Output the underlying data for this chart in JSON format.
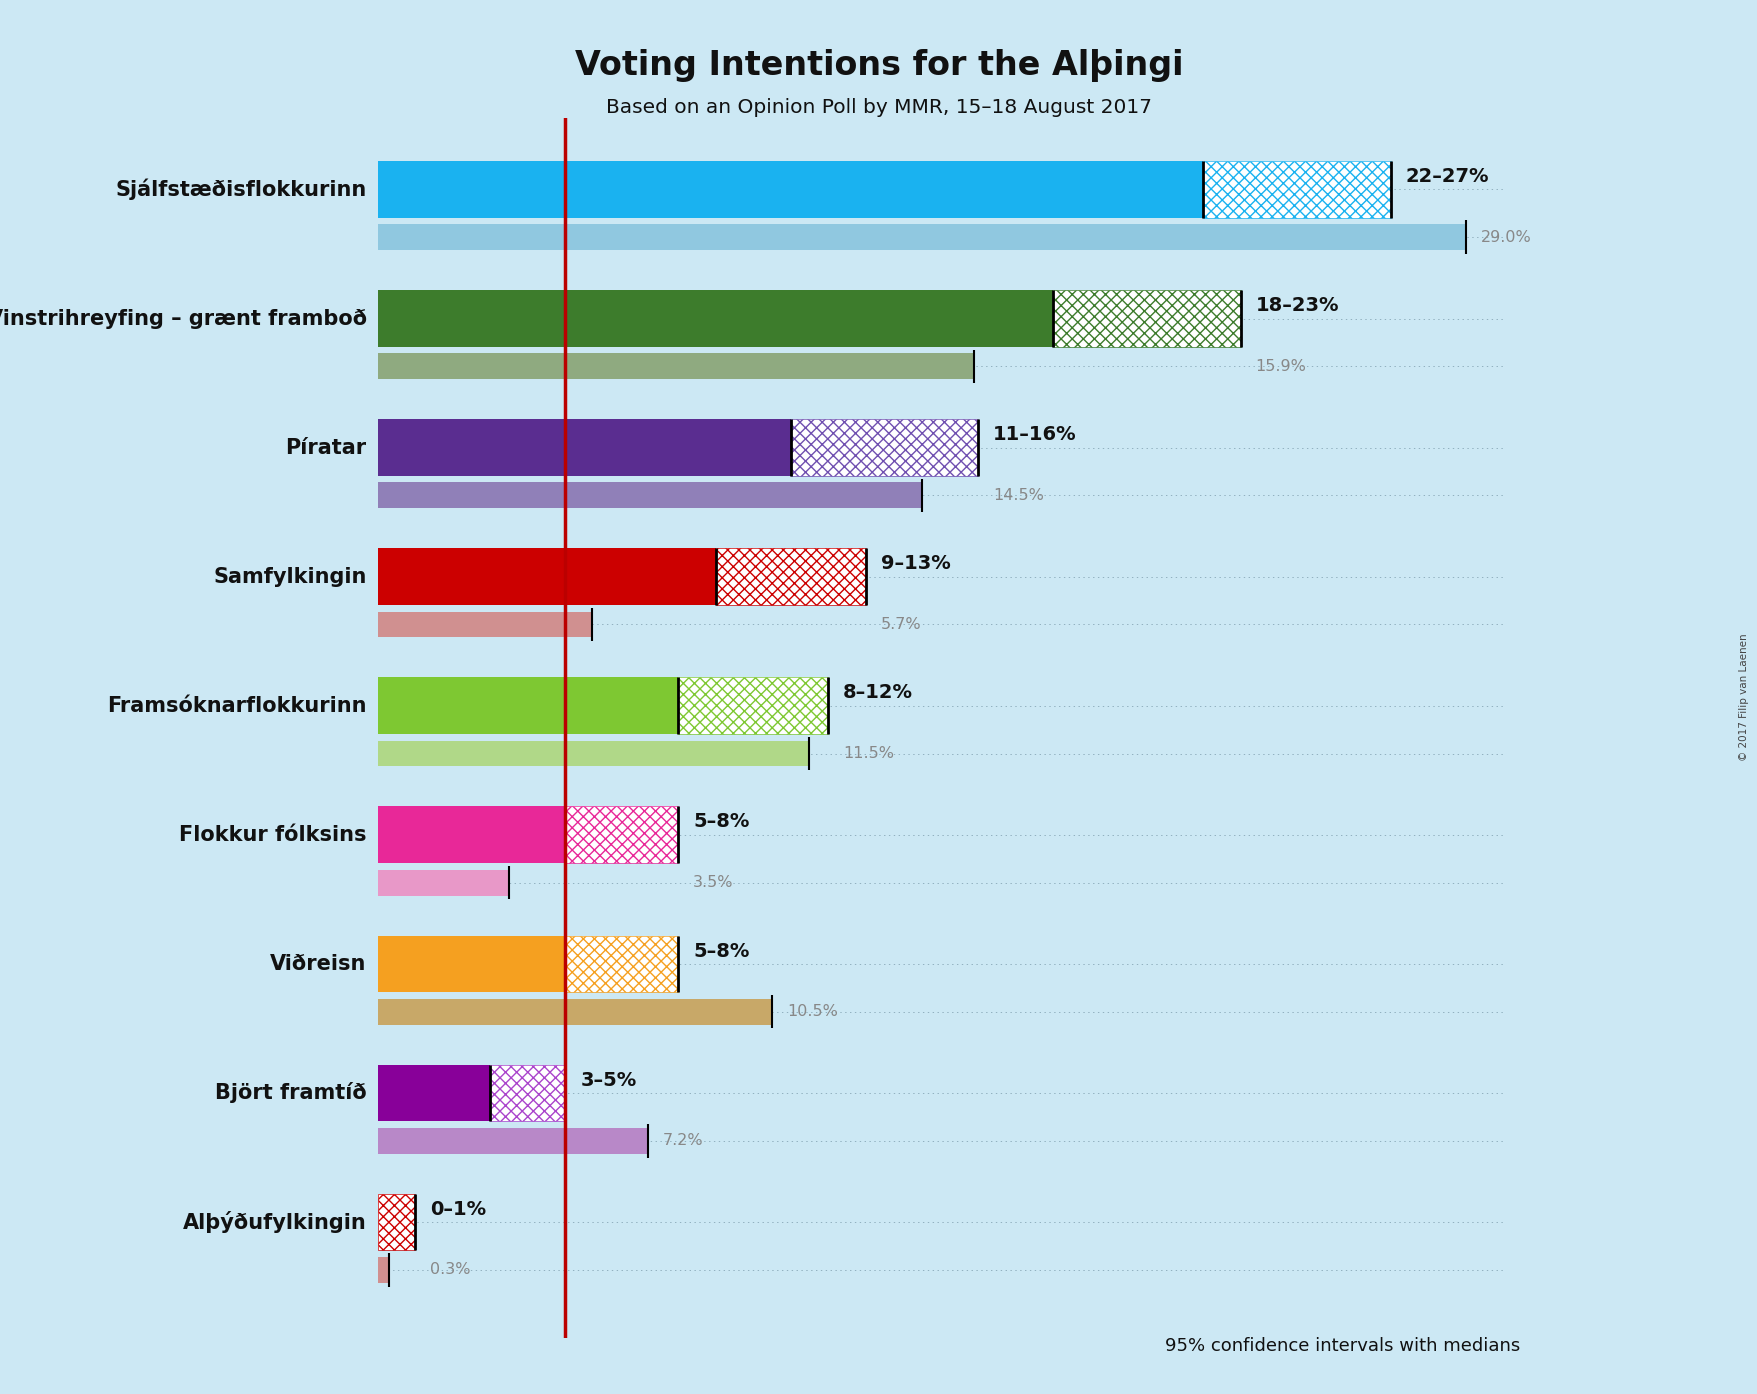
{
  "title": "Voting Intentions for the Alþingi",
  "subtitle": "Based on an Opinion Poll by MMR, 15–18 August 2017",
  "copyright": "© 2017 Filip van Laenen",
  "footer": "95% confidence intervals with medians",
  "bg": "#cce8f4",
  "parties": [
    {
      "name": "Sjálfstæðisflokkurinn",
      "ci_low": 22,
      "ci_high": 27,
      "median": 29.0,
      "color": "#1ab2f0",
      "med_color": "#90c8e0",
      "hatch_color": "#1ab2f0",
      "label": "22–27%",
      "med_label": "29.0%"
    },
    {
      "name": "Vinstrihreyfing – grænt framboð",
      "ci_low": 18,
      "ci_high": 23,
      "median": 15.9,
      "color": "#3d7c2c",
      "med_color": "#8faa80",
      "hatch_color": "#3d7c2c",
      "label": "18–23%",
      "med_label": "15.9%"
    },
    {
      "name": "Píratar",
      "ci_low": 11,
      "ci_high": 16,
      "median": 14.5,
      "color": "#5a2d90",
      "med_color": "#9080b8",
      "hatch_color": "#7050b0",
      "label": "11–16%",
      "med_label": "14.5%"
    },
    {
      "name": "Samfylkingin",
      "ci_low": 9,
      "ci_high": 13,
      "median": 5.7,
      "color": "#cc0000",
      "med_color": "#d09090",
      "hatch_color": "#cc0000",
      "label": "9–13%",
      "med_label": "5.7%"
    },
    {
      "name": "Framsóknarflokkurinn",
      "ci_low": 8,
      "ci_high": 12,
      "median": 11.5,
      "color": "#7ec832",
      "med_color": "#b0d888",
      "hatch_color": "#7ec832",
      "label": "8–12%",
      "med_label": "11.5%"
    },
    {
      "name": "Flokkur fólksins",
      "ci_low": 5,
      "ci_high": 8,
      "median": 3.5,
      "color": "#e82898",
      "med_color": "#e898c8",
      "hatch_color": "#e82898",
      "label": "5–8%",
      "med_label": "3.5%"
    },
    {
      "name": "Viðreisn",
      "ci_low": 5,
      "ci_high": 8,
      "median": 10.5,
      "color": "#f5a020",
      "med_color": "#c8a868",
      "hatch_color": "#f5a020",
      "label": "5–8%",
      "med_label": "10.5%"
    },
    {
      "name": "Björt framtíð",
      "ci_low": 3,
      "ci_high": 5,
      "median": 7.2,
      "color": "#880099",
      "med_color": "#b888c8",
      "hatch_color": "#aa44cc",
      "label": "3–5%",
      "med_label": "7.2%"
    },
    {
      "name": "Alþýðufylkingin",
      "ci_low": 0,
      "ci_high": 1,
      "median": 0.3,
      "color": "#cc0000",
      "med_color": "#d09090",
      "hatch_color": "#cc0000",
      "label": "0–1%",
      "med_label": "0.3%"
    }
  ],
  "xmax": 30,
  "red_line_x": 5.0
}
